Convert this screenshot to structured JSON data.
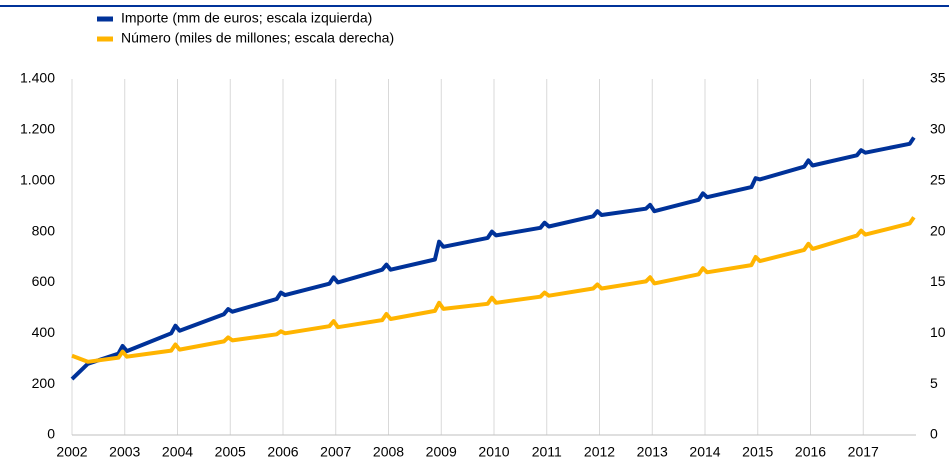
{
  "chart_data": {
    "type": "line",
    "x": [
      2002.0,
      2002.3,
      2002.88,
      2002.96,
      2003.04,
      2003.88,
      2003.96,
      2004.04,
      2004.88,
      2004.96,
      2005.04,
      2005.88,
      2005.96,
      2006.04,
      2006.88,
      2006.96,
      2007.04,
      2007.88,
      2007.96,
      2008.04,
      2008.88,
      2008.96,
      2009.04,
      2009.88,
      2009.96,
      2010.04,
      2010.88,
      2010.96,
      2011.04,
      2011.88,
      2011.96,
      2012.04,
      2012.88,
      2012.96,
      2013.04,
      2013.88,
      2013.96,
      2014.04,
      2014.88,
      2014.96,
      2015.04,
      2015.88,
      2015.96,
      2016.04,
      2016.88,
      2016.96,
      2017.04,
      2017.88,
      2017.96
    ],
    "series": [
      {
        "name": "Importe (mm de euros; escala izquierda)",
        "color": "#003299",
        "axis": "y",
        "values": [
          220,
          280,
          320,
          350,
          330,
          400,
          430,
          410,
          475,
          495,
          485,
          535,
          560,
          550,
          595,
          620,
          600,
          650,
          670,
          650,
          690,
          760,
          740,
          775,
          800,
          785,
          815,
          835,
          820,
          860,
          880,
          865,
          890,
          905,
          880,
          925,
          950,
          935,
          975,
          1010,
          1005,
          1055,
          1080,
          1060,
          1100,
          1120,
          1110,
          1145,
          1170
        ]
      },
      {
        "name": "Número (miles de millones; escala derecha)",
        "color": "#ffb400",
        "axis": "y2",
        "values": [
          7.8,
          7.2,
          7.6,
          8.2,
          7.7,
          8.3,
          8.9,
          8.4,
          9.2,
          9.6,
          9.3,
          9.9,
          10.2,
          10.0,
          10.7,
          11.2,
          10.6,
          11.3,
          11.9,
          11.4,
          12.2,
          13.0,
          12.4,
          12.9,
          13.5,
          13.0,
          13.6,
          14.0,
          13.7,
          14.4,
          14.8,
          14.4,
          15.1,
          15.5,
          14.9,
          15.8,
          16.4,
          16.0,
          16.7,
          17.5,
          17.1,
          18.2,
          18.8,
          18.3,
          19.6,
          20.1,
          19.7,
          20.8,
          21.4
        ]
      }
    ],
    "xlim": [
      2002,
      2018
    ],
    "xticks": [
      2002,
      2003,
      2004,
      2005,
      2006,
      2007,
      2008,
      2009,
      2010,
      2011,
      2012,
      2013,
      2014,
      2015,
      2016,
      2017
    ],
    "ylim": [
      0,
      1400
    ],
    "yticks": [
      0,
      200,
      400,
      600,
      800,
      {
        "value": 1000,
        "label": "1.000"
      },
      {
        "value": 1200,
        "label": "1.200"
      },
      {
        "value": 1400,
        "label": "1.400"
      }
    ],
    "y2lim": [
      0,
      35
    ],
    "y2ticks": [
      0,
      5,
      10,
      15,
      20,
      25,
      30,
      35
    ],
    "grid": true,
    "legend": "top-left"
  }
}
